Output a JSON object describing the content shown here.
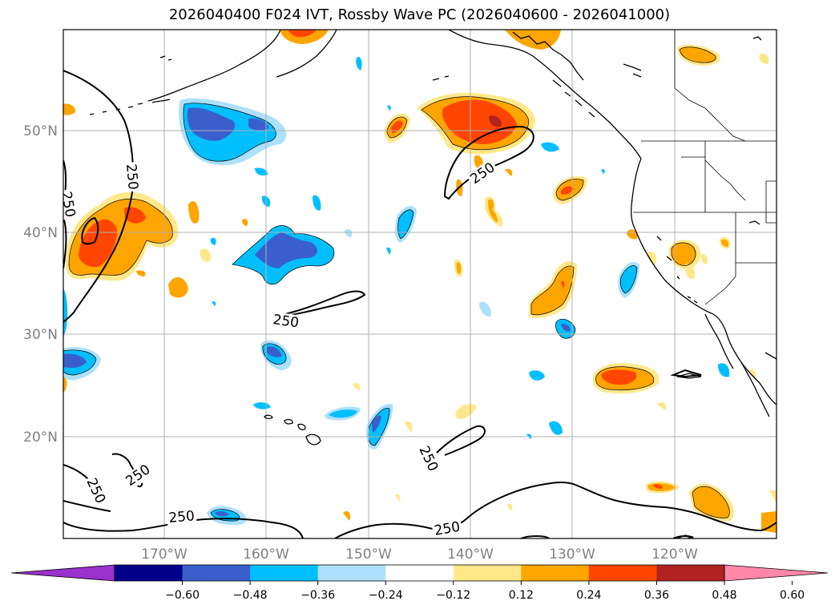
{
  "title": "2026040400 F024 IVT, Rossby Wave PC (2026040600 - 2026041000)",
  "lat_labels": [
    "50°N",
    "40°N",
    "30°N",
    "20°N"
  ],
  "lon_labels": [
    "170°W",
    "160°W",
    "150°W",
    "140°W",
    "130°W",
    "120°W"
  ],
  "contour_labels": [
    "250",
    "250",
    "250",
    "250",
    "250",
    "250",
    "250",
    "250",
    "250"
  ],
  "colorbar": {
    "ticks": [
      "−0.60",
      "−0.48",
      "−0.36",
      "−0.24",
      "−0.12",
      "0.12",
      "0.24",
      "0.36",
      "0.48",
      "0.60"
    ],
    "colors": [
      "#9932CC",
      "#00008B",
      "#3A5FCD",
      "#00BFFF",
      "#ADE0FA",
      "#FFFFFF",
      "#FFE88A",
      "#FFA500",
      "#FF4500",
      "#B22222",
      "#FF88AA"
    ]
  },
  "palette": {
    "c_n1": "#ADE0FA",
    "c_n2": "#00BFFF",
    "c_n3": "#3A5FCD",
    "c_p1": "#FFE88A",
    "c_p2": "#FFA500",
    "c_p3": "#FF4500"
  }
}
